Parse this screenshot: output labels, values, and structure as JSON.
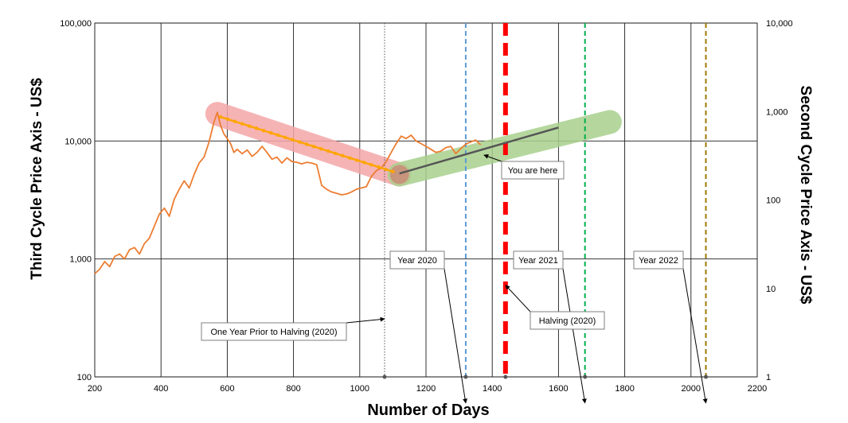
{
  "chart_data": {
    "type": "line",
    "xlabel": "Number of Days",
    "ylabel_left": "Third Cycle Price Axis - US$",
    "ylabel_right": "Second Cycle Price Axis - US$",
    "x_scale": "linear",
    "y_scale": "log",
    "xlim": [
      200,
      2200
    ],
    "ylim_left": [
      100,
      100000
    ],
    "ylim_right": [
      1,
      10000
    ],
    "x_ticks": [
      "200",
      "400",
      "600",
      "800",
      "1000",
      "1200",
      "1400",
      "1600",
      "1800",
      "2000",
      "2200"
    ],
    "y_ticks_left": [
      "100",
      "1,000",
      "10,000",
      "100,000"
    ],
    "y_ticks_right": [
      "1",
      "10",
      "100",
      "1,000",
      "10,000"
    ],
    "grid": true,
    "series": [
      {
        "color": "#ed7d31",
        "x": [
          200,
          215,
          230,
          245,
          260,
          275,
          290,
          305,
          320,
          335,
          350,
          365,
          380,
          395,
          410,
          425,
          440,
          455,
          470,
          485,
          500,
          515,
          530,
          545,
          560,
          570,
          580,
          590,
          600,
          610,
          620,
          630,
          645,
          660,
          675,
          690,
          705,
          720,
          735,
          750,
          765,
          780,
          795,
          810,
          825,
          840,
          855,
          870,
          885,
          900,
          915,
          930,
          945,
          960,
          975,
          990,
          1005,
          1020,
          1035,
          1050,
          1065,
          1080,
          1095,
          1110,
          1125,
          1140,
          1155,
          1170,
          1185,
          1200,
          1215,
          1230,
          1245,
          1260,
          1275,
          1290,
          1305,
          1320,
          1335,
          1350,
          1365
        ],
        "values": [
          750,
          820,
          950,
          860,
          1050,
          1100,
          1000,
          1200,
          1250,
          1100,
          1350,
          1500,
          1900,
          2400,
          2700,
          2300,
          3200,
          3900,
          4600,
          4000,
          5200,
          6500,
          7300,
          9800,
          14500,
          17500,
          13500,
          11500,
          10500,
          9500,
          8000,
          8500,
          7800,
          8400,
          7400,
          8000,
          9000,
          8000,
          7000,
          7300,
          6500,
          7200,
          6700,
          6600,
          6400,
          6600,
          6500,
          6300,
          4200,
          3900,
          3700,
          3600,
          3500,
          3550,
          3700,
          3900,
          4000,
          4100,
          5000,
          5600,
          5900,
          6700,
          8000,
          9500,
          11000,
          10500,
          11200,
          10000,
          9500,
          9000,
          8500,
          8000,
          8200,
          8800,
          9000,
          7800,
          8600,
          9400,
          9800,
          10200,
          9300
        ]
      },
      {
        "color": "#ffa500",
        "x": [
          580,
          1100
        ],
        "values": [
          16000,
          5500
        ]
      },
      {
        "color": "#555555",
        "x": [
          1120,
          1600
        ],
        "values": [
          5300,
          13000
        ]
      }
    ],
    "vertical_lines": [
      {
        "x": 1075,
        "color": "#555555",
        "style": "dotted"
      },
      {
        "x": 1320,
        "color": "#5b9bd5",
        "style": "dashed"
      },
      {
        "x": 1440,
        "color": "#ff0000",
        "style": "thick-dashed"
      },
      {
        "x": 1680,
        "color": "#00b050",
        "style": "dashed"
      },
      {
        "x": 2045,
        "color": "#9c7a00",
        "style": "dashed"
      }
    ],
    "annotations": [
      {
        "text": "One Year Prior to Halving (2020)"
      },
      {
        "text": "Year 2020"
      },
      {
        "text": "You are here"
      },
      {
        "text": "Year 2021"
      },
      {
        "text": "Halving (2020)"
      },
      {
        "text": "Year 2022"
      }
    ],
    "highlight_bands": [
      {
        "color": "#f4a6a8",
        "from_x": 570,
        "from_y": 17000,
        "to_x": 1120,
        "to_y": 5200
      },
      {
        "color": "#a9d18e",
        "from_x": 1120,
        "from_y": 5200,
        "to_x": 1755,
        "to_y": 14500
      }
    ]
  }
}
